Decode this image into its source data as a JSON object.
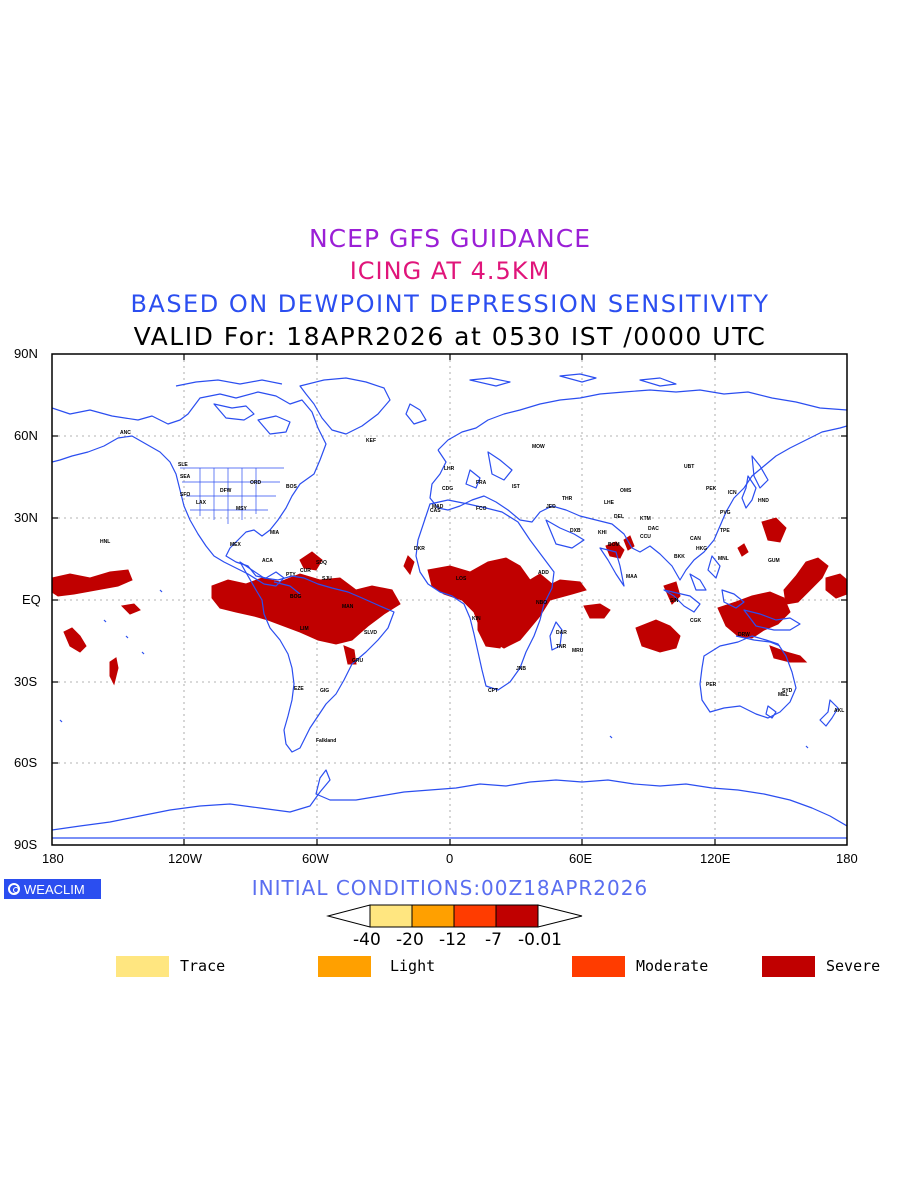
{
  "title": {
    "line1": "NCEP GFS GUIDANCE",
    "line2": "ICING AT 4.5KM",
    "line3": "BASED ON DEWPOINT DEPRESSION SENSITIVITY",
    "line4": "VALID For: 18APR2026 at 0530 IST /0000 UTC"
  },
  "axes": {
    "lat_labels": [
      "90N",
      "60N",
      "30N",
      "EQ",
      "30S",
      "60S",
      "90S"
    ],
    "lon_labels": [
      "180",
      "120W",
      "60W",
      "0",
      "60E",
      "120E",
      "180"
    ]
  },
  "logo": {
    "text": "WEACLIM"
  },
  "initial_conditions": "INITIAL CONDITIONS:00Z18APR2026",
  "colorbar": {
    "ticks": [
      "-40",
      "-20",
      "-12",
      "-7",
      "-0.01"
    ],
    "colors": [
      "#ffe680",
      "#ffa000",
      "#ff3c00",
      "#c00000"
    ]
  },
  "legend": [
    {
      "label": "Trace",
      "color": "#ffe680"
    },
    {
      "label": "Light",
      "color": "#ffa000"
    },
    {
      "label": "Moderate",
      "color": "#ff3c00"
    },
    {
      "label": "Severe",
      "color": "#c00000"
    }
  ],
  "colors": {
    "coastline": "#2b4ef0",
    "severe": "#c00000"
  },
  "station_labels": [
    "ANC",
    "SLE",
    "HNL",
    "DFW",
    "MSY",
    "MIA",
    "ORD",
    "BOS",
    "SEA",
    "SFO",
    "LAX",
    "BOG",
    "LIM",
    "GRU",
    "EZE",
    "Falkland",
    "GIG",
    "MAN",
    "KEF",
    "LHR",
    "CDG",
    "FRA",
    "MOW",
    "MAD",
    "FCO",
    "IST",
    "JED",
    "DXB",
    "THR",
    "KHI",
    "DEL",
    "BOM",
    "CCU",
    "MAA",
    "DAC",
    "KTM",
    "LHE",
    "BKK",
    "SIN",
    "CGK",
    "PEK",
    "PVG",
    "CAN",
    "HKG",
    "TPE",
    "MNL",
    "GUM",
    "HND",
    "ICN",
    "OMS",
    "UBT",
    "NBO",
    "ADD",
    "JNB",
    "CPT",
    "DAR",
    "KIN",
    "LOS",
    "CAS",
    "DKR",
    "PER",
    "SYD",
    "AKL",
    "MEL",
    "DRW",
    "MRU",
    "TNR",
    "SLVD",
    "SDQ",
    "SJU",
    "MEX",
    "ACA",
    "PTY",
    "CUR"
  ]
}
